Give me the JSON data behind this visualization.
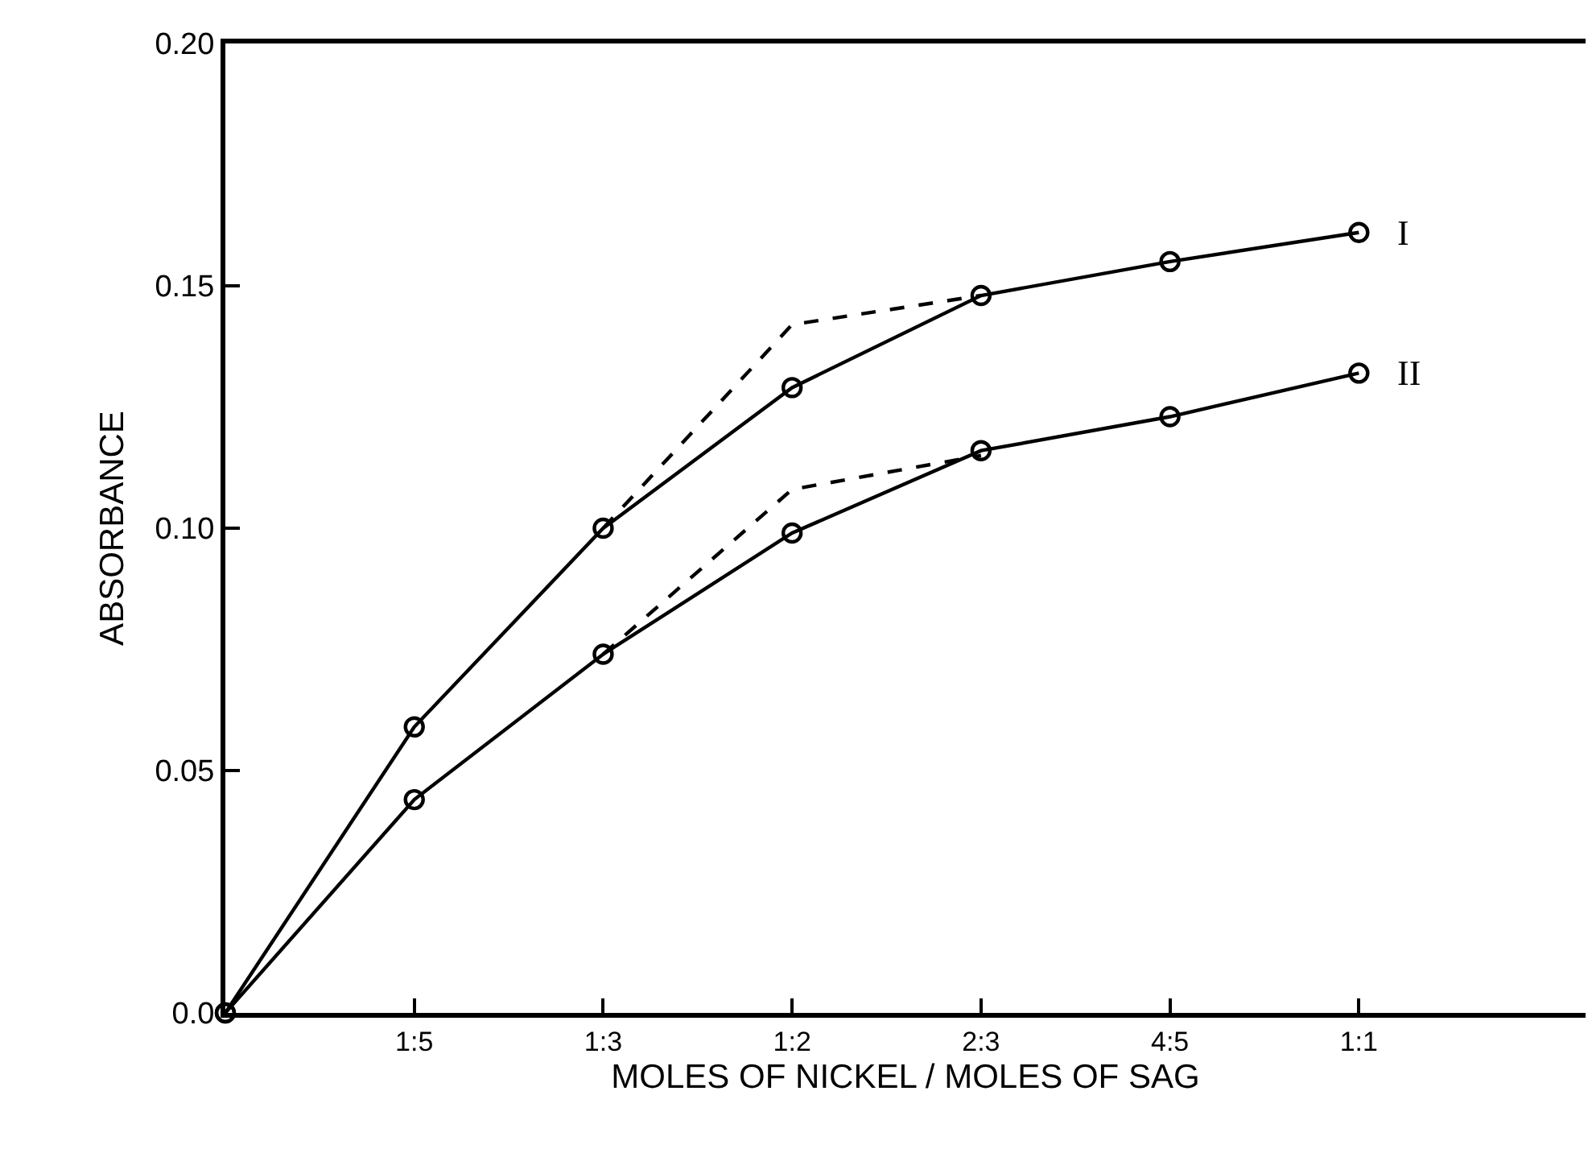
{
  "chart_data": {
    "type": "line",
    "xlabel": "MOLES OF NICKEL / MOLES OF SAG",
    "ylabel": "ABSORBANCE",
    "categories": [
      null,
      "1:5",
      "1:3",
      "1:2",
      "2:3",
      "4:5",
      "1:1"
    ],
    "series": [
      {
        "color": "#000000",
        "line_style": "dashed",
        "marker": "none",
        "values": [
          null,
          null,
          0.1,
          0.142,
          0.148,
          null,
          null
        ]
      },
      {
        "color": "#000000",
        "line_style": "dashed",
        "marker": "none",
        "values": [
          null,
          null,
          0.074,
          0.108,
          0.115,
          null,
          null
        ]
      },
      {
        "name": "I",
        "color": "#000000",
        "line_style": "solid",
        "marker": "circle",
        "values": [
          0,
          0.059,
          0.1,
          0.129,
          0.148,
          0.155,
          0.161
        ]
      },
      {
        "name": "II",
        "color": "#000000",
        "line_style": "solid",
        "marker": "circle",
        "values": [
          0,
          0.044,
          0.074,
          0.099,
          0.116,
          0.123,
          0.132
        ]
      }
    ],
    "ylim": [
      0,
      0.2
    ],
    "yticks": [
      {
        "value": 0,
        "label": "0.0"
      },
      0.05,
      {
        "value": 0.1,
        "label": "0.10"
      },
      0.15,
      {
        "value": 0.2,
        "label": "0.20"
      }
    ],
    "grid": false,
    "legend": false
  }
}
